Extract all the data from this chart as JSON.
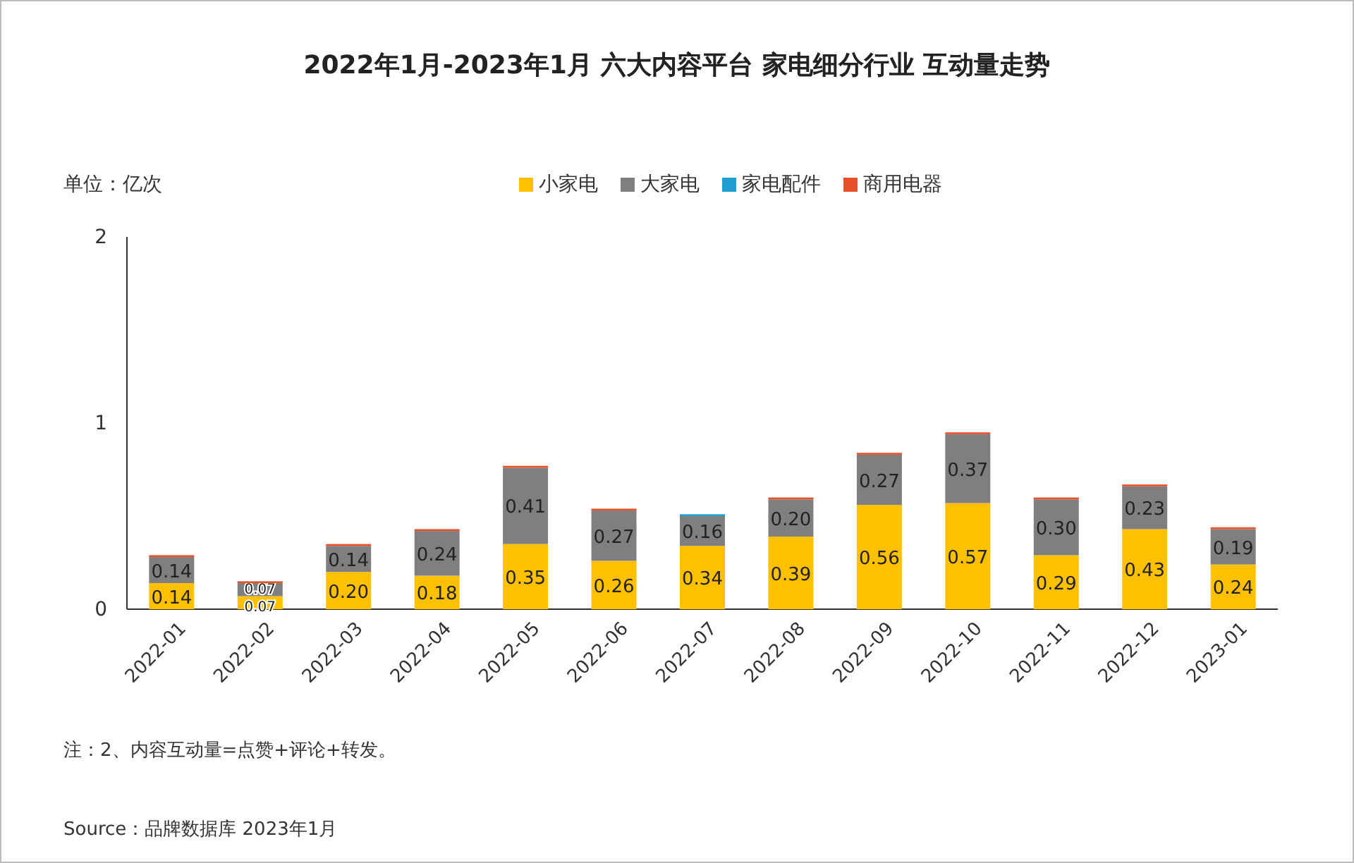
{
  "chart_data": {
    "type": "bar",
    "stacked": true,
    "title": "2022年1月-2023年1月 六大内容平台 家电细分行业 互动量走势",
    "categories": [
      "2022-01",
      "2022-02",
      "2022-03",
      "2022-04",
      "2022-05",
      "2022-06",
      "2022-07",
      "2022-08",
      "2022-09",
      "2022-10",
      "2022-11",
      "2022-12",
      "2023-01"
    ],
    "series": [
      {
        "name": "小家电",
        "color": "#ffc000",
        "values": [
          0.14,
          0.07,
          0.2,
          0.18,
          0.35,
          0.26,
          0.34,
          0.39,
          0.56,
          0.57,
          0.29,
          0.43,
          0.24
        ],
        "value_labels": [
          "0.14",
          "0.07",
          "0.20",
          "0.18",
          "0.35",
          "0.26",
          "0.34",
          "0.39",
          "0.56",
          "0.57",
          "0.29",
          "0.43",
          "0.24"
        ]
      },
      {
        "name": "大家电",
        "color": "#7f7f7f",
        "values": [
          0.14,
          0.07,
          0.14,
          0.24,
          0.41,
          0.27,
          0.16,
          0.2,
          0.27,
          0.37,
          0.3,
          0.23,
          0.19
        ],
        "value_labels": [
          "0.14",
          "0.07",
          "0.14",
          "0.24",
          "0.41",
          "0.27",
          "0.16",
          "0.20",
          "0.27",
          "0.37",
          "0.30",
          "0.23",
          "0.19"
        ]
      },
      {
        "name": "家电配件",
        "color": "#1f9fd0",
        "values": [
          null,
          null,
          null,
          null,
          null,
          null,
          0.01,
          null,
          null,
          null,
          null,
          null,
          null
        ]
      },
      {
        "name": "商用电器",
        "color": "#e8502a",
        "values": [
          0.01,
          0.01,
          0.01,
          0.01,
          0.01,
          0.01,
          null,
          0.01,
          0.01,
          0.01,
          0.01,
          0.01,
          0.01
        ]
      }
    ],
    "ylim": [
      0,
      2
    ],
    "yticks": [
      0,
      1,
      2
    ],
    "grid": false,
    "legend": "top",
    "annotations": [
      "单位：亿次",
      "注：2、内容互动量=点赞+评论+转发。",
      "Source：品牌数据库 2023年1月"
    ]
  }
}
